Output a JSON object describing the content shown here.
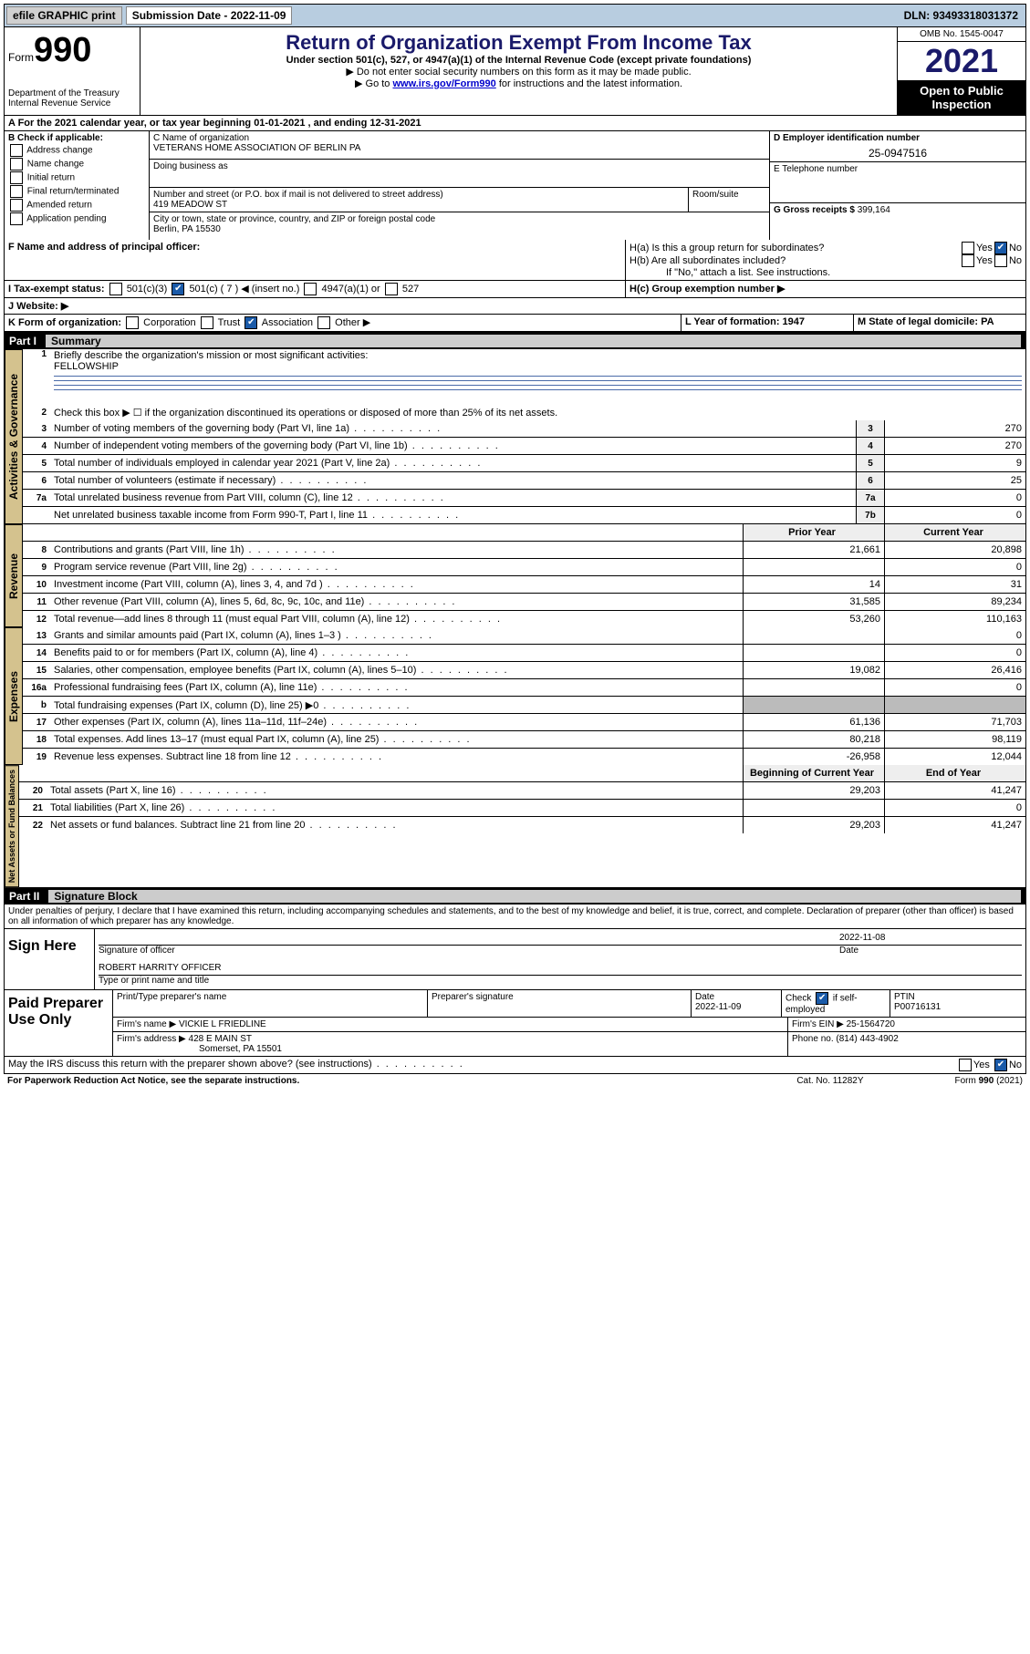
{
  "topbar": {
    "efile": "efile GRAPHIC print",
    "submission": "Submission Date - 2022-11-09",
    "dln": "DLN: 93493318031372"
  },
  "header": {
    "form_small": "Form",
    "form_big": "990",
    "dept": "Department of the Treasury",
    "irs": "Internal Revenue Service",
    "title": "Return of Organization Exempt From Income Tax",
    "sub1": "Under section 501(c), 527, or 4947(a)(1) of the Internal Revenue Code (except private foundations)",
    "sub2": "▶ Do not enter social security numbers on this form as it may be made public.",
    "sub3a": "▶ Go to ",
    "sub3_link": "www.irs.gov/Form990",
    "sub3b": " for instructions and the latest information.",
    "omb": "OMB No. 1545-0047",
    "year": "2021",
    "open": "Open to Public Inspection"
  },
  "rowA": "A For the 2021 calendar year, or tax year beginning 01-01-2021   , and ending 12-31-2021",
  "B": {
    "title": "B Check if applicable:",
    "opts": [
      "Address change",
      "Name change",
      "Initial return",
      "Final return/terminated",
      "Amended return",
      "Application pending"
    ]
  },
  "C": {
    "name_lbl": "C Name of organization",
    "name": "VETERANS HOME ASSOCIATION OF BERLIN PA",
    "dba_lbl": "Doing business as",
    "addr_lbl": "Number and street (or P.O. box if mail is not delivered to street address)",
    "room_lbl": "Room/suite",
    "addr": "419 MEADOW ST",
    "city_lbl": "City or town, state or province, country, and ZIP or foreign postal code",
    "city": "Berlin, PA  15530"
  },
  "D": {
    "ein_lbl": "D Employer identification number",
    "ein": "25-0947516",
    "tel_lbl": "E Telephone number",
    "gross_lbl": "G Gross receipts $",
    "gross": "399,164"
  },
  "F": "F  Name and address of principal officer:",
  "H": {
    "a": "H(a)  Is this a group return for subordinates?",
    "b": "H(b)  Are all subordinates included?",
    "no_note": "If \"No,\" attach a list. See instructions.",
    "c": "H(c)  Group exemption number ▶"
  },
  "I": {
    "lbl": "I   Tax-exempt status:",
    "c3": "501(c)(3)",
    "c": "501(c) ( 7 ) ◀ (insert no.)",
    "a1": "4947(a)(1) or",
    "s527": "527"
  },
  "J": "J   Website: ▶",
  "K": {
    "lbl": "K Form of organization:",
    "corp": "Corporation",
    "trust": "Trust",
    "assoc": "Association",
    "other": "Other ▶"
  },
  "L": "L Year of formation: 1947",
  "M": "M State of legal domicile: PA",
  "part1": {
    "lbl": "Part I",
    "ttl": "Summary"
  },
  "summary": {
    "l1": "Briefly describe the organization's mission or most significant activities:",
    "l1v": "FELLOWSHIP",
    "l2": "Check this box ▶ ☐  if the organization discontinued its operations or disposed of more than 25% of its net assets.",
    "rows_gov": [
      {
        "n": "3",
        "t": "Number of voting members of the governing body (Part VI, line 1a)",
        "b": "3",
        "v": "270"
      },
      {
        "n": "4",
        "t": "Number of independent voting members of the governing body (Part VI, line 1b)",
        "b": "4",
        "v": "270"
      },
      {
        "n": "5",
        "t": "Total number of individuals employed in calendar year 2021 (Part V, line 2a)",
        "b": "5",
        "v": "9"
      },
      {
        "n": "6",
        "t": "Total number of volunteers (estimate if necessary)",
        "b": "6",
        "v": "25"
      },
      {
        "n": "7a",
        "t": "Total unrelated business revenue from Part VIII, column (C), line 12",
        "b": "7a",
        "v": "0"
      },
      {
        "n": "",
        "t": "Net unrelated business taxable income from Form 990-T, Part I, line 11",
        "b": "7b",
        "v": "0"
      }
    ],
    "hdr_prior": "Prior Year",
    "hdr_curr": "Current Year",
    "rows_rev": [
      {
        "n": "8",
        "t": "Contributions and grants (Part VIII, line 1h)",
        "p": "21,661",
        "c": "20,898"
      },
      {
        "n": "9",
        "t": "Program service revenue (Part VIII, line 2g)",
        "p": "",
        "c": "0"
      },
      {
        "n": "10",
        "t": "Investment income (Part VIII, column (A), lines 3, 4, and 7d )",
        "p": "14",
        "c": "31"
      },
      {
        "n": "11",
        "t": "Other revenue (Part VIII, column (A), lines 5, 6d, 8c, 9c, 10c, and 11e)",
        "p": "31,585",
        "c": "89,234"
      },
      {
        "n": "12",
        "t": "Total revenue—add lines 8 through 11 (must equal Part VIII, column (A), line 12)",
        "p": "53,260",
        "c": "110,163"
      }
    ],
    "rows_exp": [
      {
        "n": "13",
        "t": "Grants and similar amounts paid (Part IX, column (A), lines 1–3 )",
        "p": "",
        "c": "0"
      },
      {
        "n": "14",
        "t": "Benefits paid to or for members (Part IX, column (A), line 4)",
        "p": "",
        "c": "0"
      },
      {
        "n": "15",
        "t": "Salaries, other compensation, employee benefits (Part IX, column (A), lines 5–10)",
        "p": "19,082",
        "c": "26,416"
      },
      {
        "n": "16a",
        "t": "Professional fundraising fees (Part IX, column (A), line 11e)",
        "p": "",
        "c": "0"
      },
      {
        "n": "b",
        "t": "Total fundraising expenses (Part IX, column (D), line 25) ▶0",
        "p": "shade",
        "c": "shade"
      },
      {
        "n": "17",
        "t": "Other expenses (Part IX, column (A), lines 11a–11d, 11f–24e)",
        "p": "61,136",
        "c": "71,703"
      },
      {
        "n": "18",
        "t": "Total expenses. Add lines 13–17 (must equal Part IX, column (A), line 25)",
        "p": "80,218",
        "c": "98,119"
      },
      {
        "n": "19",
        "t": "Revenue less expenses. Subtract line 18 from line 12",
        "p": "-26,958",
        "c": "12,044"
      }
    ],
    "hdr_beg": "Beginning of Current Year",
    "hdr_end": "End of Year",
    "rows_net": [
      {
        "n": "20",
        "t": "Total assets (Part X, line 16)",
        "p": "29,203",
        "c": "41,247"
      },
      {
        "n": "21",
        "t": "Total liabilities (Part X, line 26)",
        "p": "",
        "c": "0"
      },
      {
        "n": "22",
        "t": "Net assets or fund balances. Subtract line 21 from line 20",
        "p": "29,203",
        "c": "41,247"
      }
    ]
  },
  "tabs": {
    "gov": "Activities & Governance",
    "rev": "Revenue",
    "exp": "Expenses",
    "net": "Net Assets or Fund Balances"
  },
  "part2": {
    "lbl": "Part II",
    "ttl": "Signature Block"
  },
  "sig": {
    "decl": "Under penalties of perjury, I declare that I have examined this return, including accompanying schedules and statements, and to the best of my knowledge and belief, it is true, correct, and complete. Declaration of preparer (other than officer) is based on all information of which preparer has any knowledge.",
    "sign_here": "Sign Here",
    "sig_officer": "Signature of officer",
    "date": "Date",
    "date_v": "2022-11-08",
    "name": "ROBERT HARRITY  OFFICER",
    "name_lbl": "Type or print name and title"
  },
  "prep": {
    "title": "Paid Preparer Use Only",
    "h1": "Print/Type preparer's name",
    "h2": "Preparer's signature",
    "h3": "Date",
    "h3v": "2022-11-09",
    "h4a": "Check",
    "h4b": "if self-employed",
    "h5": "PTIN",
    "h5v": "P00716131",
    "firm_lbl": "Firm's name    ▶",
    "firm": "VICKIE L FRIEDLINE",
    "ein_lbl": "Firm's EIN ▶",
    "ein": "25-1564720",
    "addr_lbl": "Firm's address ▶",
    "addr1": "428 E MAIN ST",
    "addr2": "Somerset, PA  15501",
    "phone_lbl": "Phone no.",
    "phone": "(814) 443-4902"
  },
  "discuss": "May the IRS discuss this return with the preparer shown above? (see instructions)",
  "footer": {
    "l": "For Paperwork Reduction Act Notice, see the separate instructions.",
    "m": "Cat. No. 11282Y",
    "r": "Form 990 (2021)"
  },
  "yes": "Yes",
  "no": "No"
}
